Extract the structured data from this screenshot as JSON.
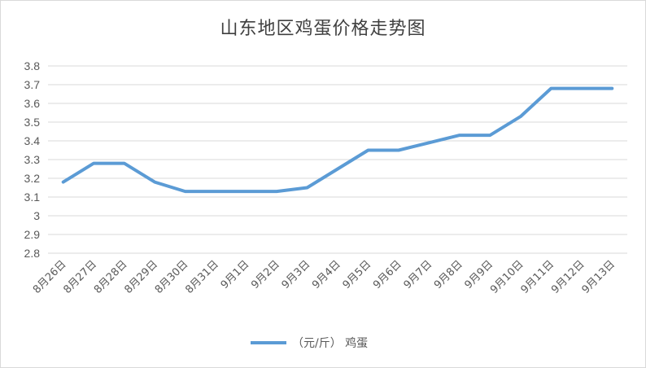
{
  "chart_data": {
    "type": "line",
    "title": "山东地区鸡蛋价格走势图",
    "xlabel": "",
    "ylabel": "",
    "categories": [
      "8月26日",
      "8月27日",
      "8月28日",
      "8月29日",
      "8月30日",
      "8月31日",
      "9月1日",
      "9月2日",
      "9月3日",
      "9月4日",
      "9月5日",
      "9月6日",
      "9月7日",
      "9月8日",
      "9月9日",
      "9月10日",
      "9月11日",
      "9月12日",
      "9月13日"
    ],
    "series": [
      {
        "name": "（元/斤） 鸡蛋",
        "values": [
          3.18,
          3.28,
          3.28,
          3.18,
          3.13,
          3.13,
          3.13,
          3.13,
          3.15,
          3.25,
          3.35,
          3.35,
          3.39,
          3.43,
          3.43,
          3.53,
          3.68,
          3.68,
          3.68
        ]
      }
    ],
    "ylim": [
      2.8,
      3.8
    ],
    "yticks": [
      "2.8",
      "2.9",
      "3",
      "3.1",
      "3.2",
      "3.3",
      "3.4",
      "3.5",
      "3.6",
      "3.7",
      "3.8"
    ],
    "grid": true,
    "legend_position": "bottom",
    "colors": {
      "line": "#5b9bd5",
      "grid": "#d9d9d9",
      "text": "#595959"
    }
  }
}
